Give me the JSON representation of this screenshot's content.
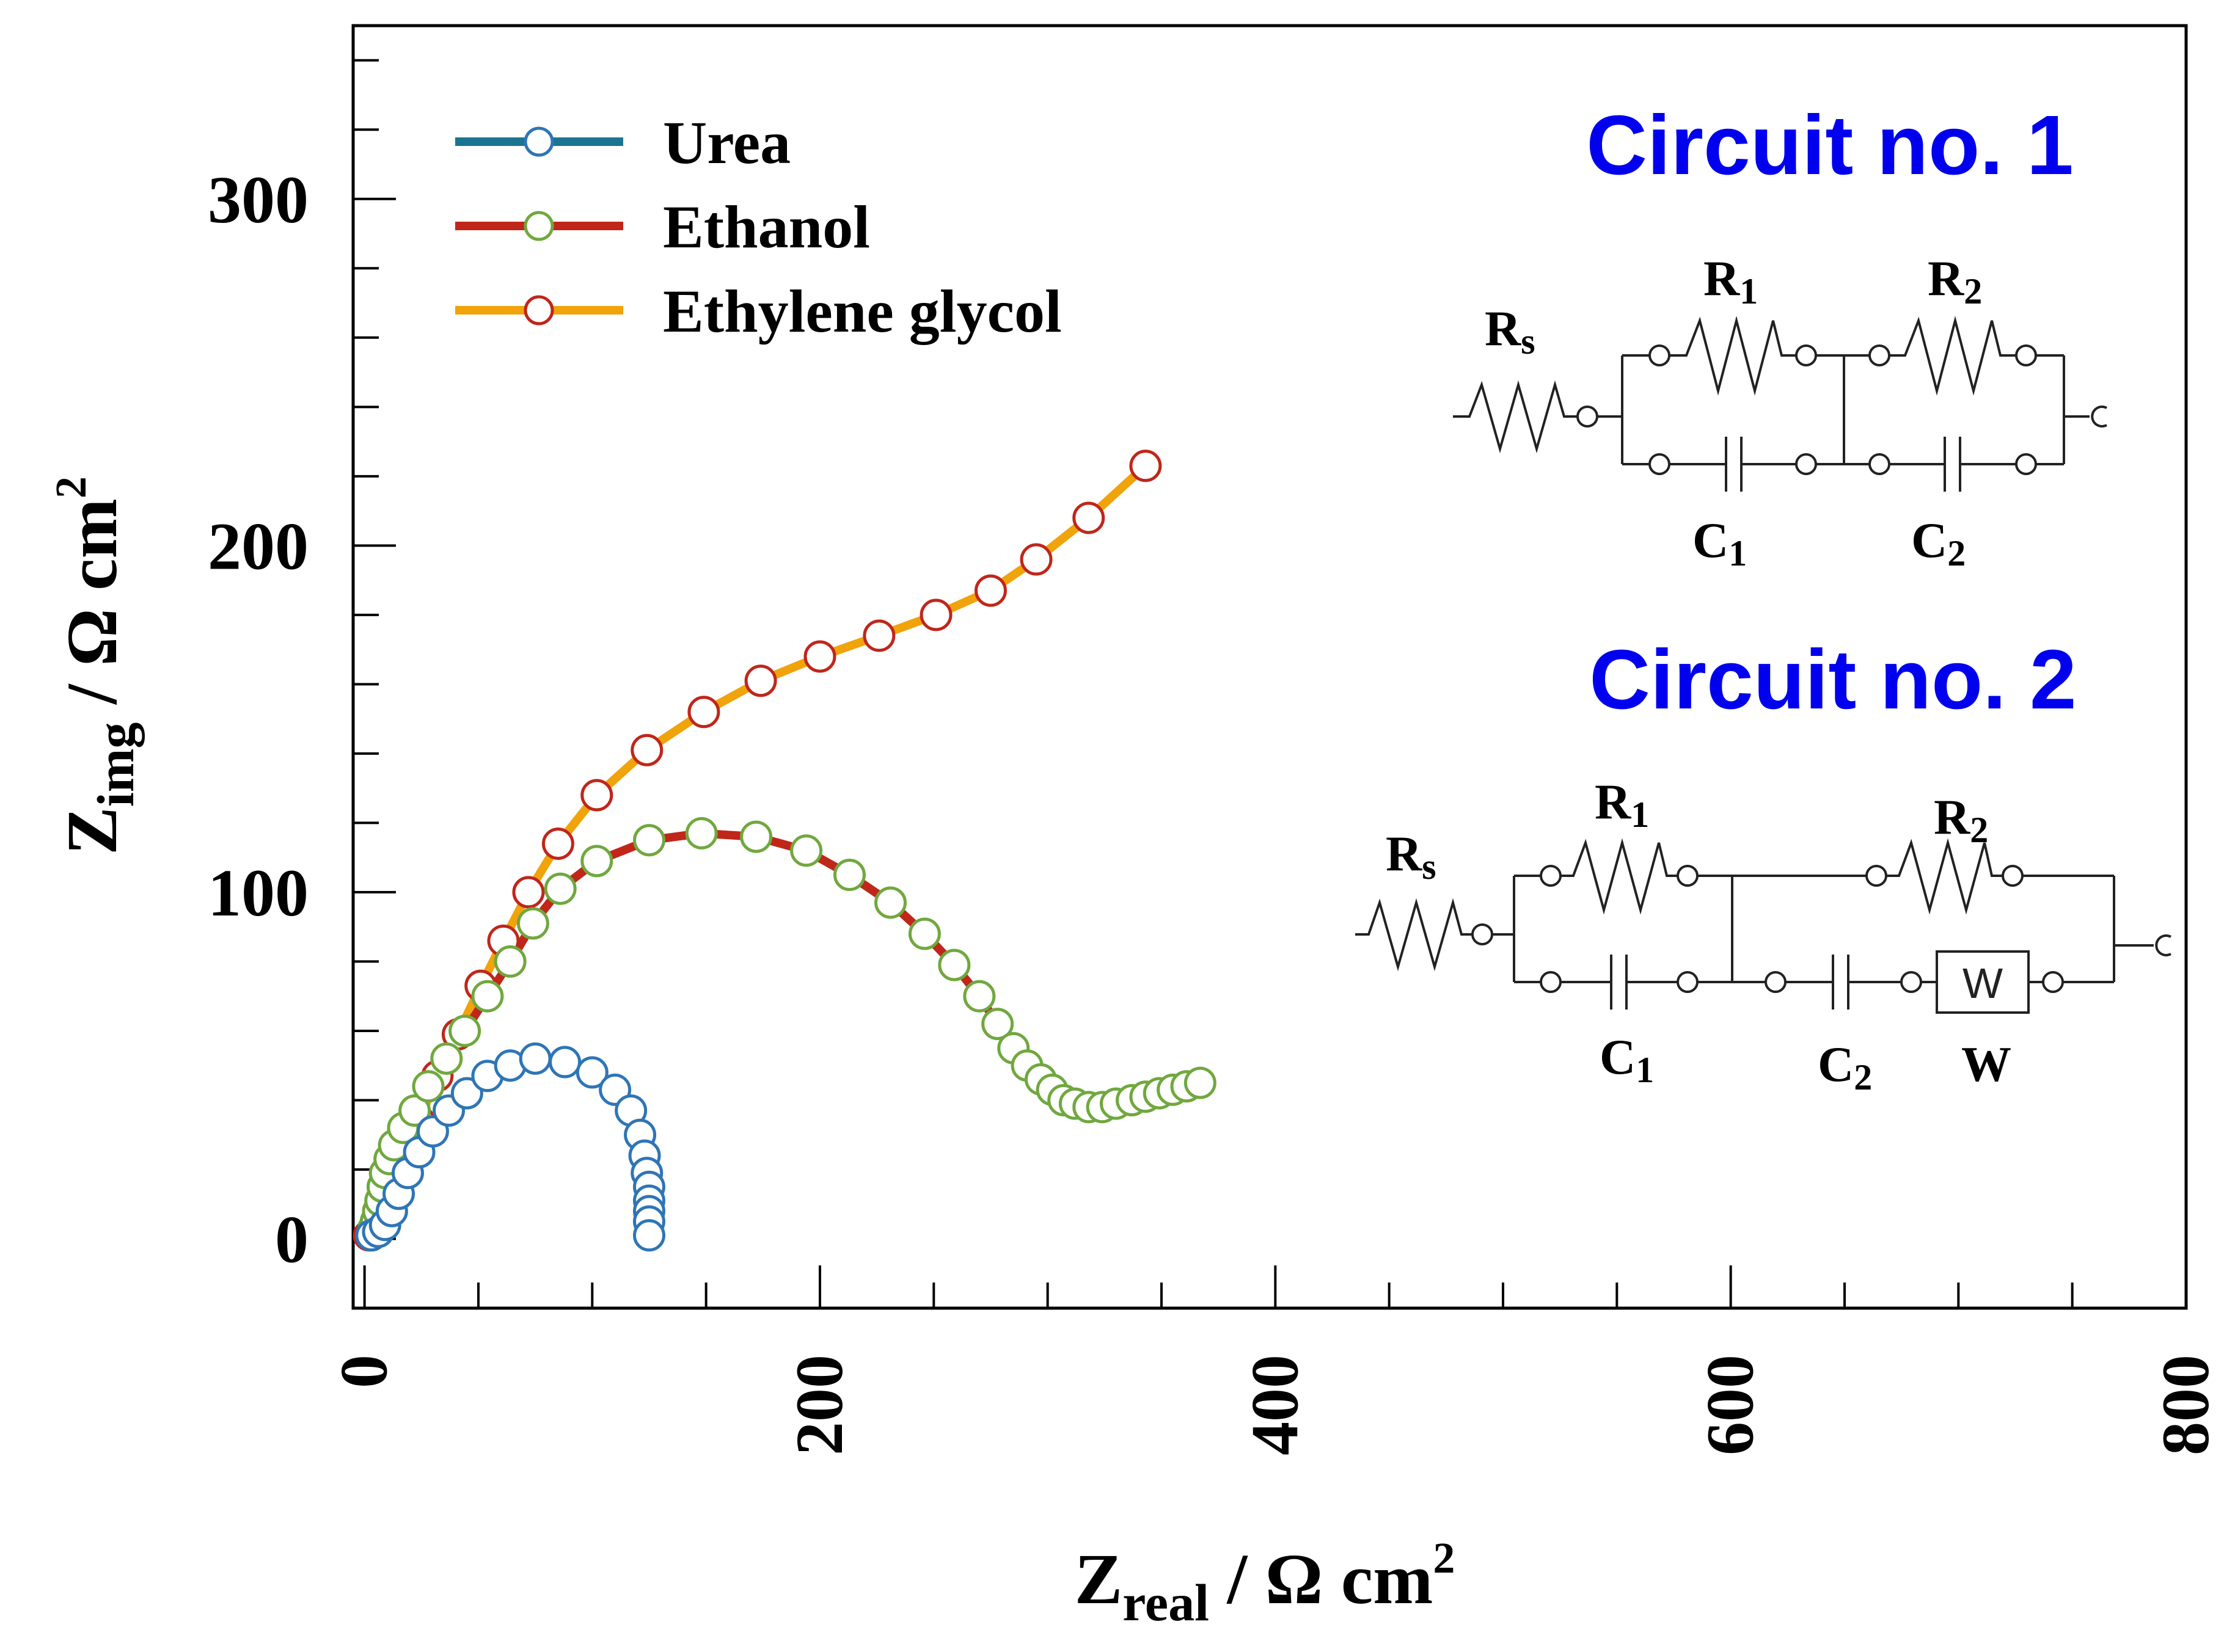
{
  "chart_data": {
    "type": "scatter",
    "title": "",
    "xlabel": {
      "main": "Z",
      "sub": "real",
      "rest": " / Ω cm",
      "sup": "2"
    },
    "ylabel": {
      "main": "Z",
      "sub": "img",
      "rest": " / Ω cm",
      "sup": "2"
    },
    "xlim": [
      -5,
      800
    ],
    "ylim": [
      -20,
      350
    ],
    "xticks": [
      "0",
      "200",
      "400",
      "600",
      "800"
    ],
    "yticks": [
      "0",
      "100",
      "200",
      "300"
    ],
    "series": [
      {
        "name": "Urea",
        "line_color": "#1a7590",
        "marker_color": "#2e75b6",
        "points": [
          [
            3,
            1
          ],
          [
            6,
            2
          ],
          [
            9,
            4
          ],
          [
            12,
            8
          ],
          [
            15,
            13
          ],
          [
            19,
            19
          ],
          [
            24,
            25
          ],
          [
            30,
            31
          ],
          [
            37,
            37
          ],
          [
            45,
            42
          ],
          [
            54,
            47
          ],
          [
            64,
            50
          ],
          [
            75,
            52
          ],
          [
            88,
            51
          ],
          [
            100,
            48
          ],
          [
            110,
            43
          ],
          [
            117,
            37
          ],
          [
            121,
            30
          ],
          [
            123,
            24
          ],
          [
            124,
            19
          ],
          [
            125,
            15
          ],
          [
            125,
            11
          ],
          [
            125,
            8
          ],
          [
            125,
            5
          ],
          [
            125,
            1
          ]
        ]
      },
      {
        "name": "Ethanol",
        "line_color": "#c0261a",
        "marker_color": "#70a83e",
        "points": [
          [
            3,
            1
          ],
          [
            4,
            3
          ],
          [
            5,
            5
          ],
          [
            6,
            8
          ],
          [
            7,
            11
          ],
          [
            8,
            15
          ],
          [
            9,
            19
          ],
          [
            11,
            23
          ],
          [
            13,
            27
          ],
          [
            17,
            32
          ],
          [
            22,
            37
          ],
          [
            28,
            44
          ],
          [
            36,
            52
          ],
          [
            44,
            60
          ],
          [
            54,
            70
          ],
          [
            64,
            80
          ],
          [
            74,
            91
          ],
          [
            86,
            101
          ],
          [
            102,
            109
          ],
          [
            125,
            115
          ],
          [
            148,
            117
          ],
          [
            172,
            116
          ],
          [
            194,
            112
          ],
          [
            213,
            105
          ],
          [
            231,
            97
          ],
          [
            246,
            88
          ],
          [
            259,
            79
          ],
          [
            270,
            70
          ],
          [
            278,
            62
          ],
          [
            285,
            55
          ],
          [
            291,
            50
          ],
          [
            297,
            46
          ],
          [
            302,
            43
          ],
          [
            307,
            40
          ],
          [
            312,
            39
          ],
          [
            318,
            38
          ],
          [
            324,
            38
          ],
          [
            330,
            39
          ],
          [
            337,
            40
          ],
          [
            343,
            41
          ],
          [
            349,
            42
          ],
          [
            355,
            43
          ],
          [
            361,
            44
          ],
          [
            367,
            45
          ]
        ]
      },
      {
        "name": "Ethylene glycol",
        "line_color": "#f0a30a",
        "marker_color": "#c0261a",
        "points": [
          [
            2,
            1
          ],
          [
            5,
            4
          ],
          [
            8,
            8
          ],
          [
            12,
            15
          ],
          [
            17,
            23
          ],
          [
            24,
            34
          ],
          [
            32,
            47
          ],
          [
            41,
            59
          ],
          [
            51,
            73
          ],
          [
            61,
            86
          ],
          [
            72,
            100
          ],
          [
            85,
            114
          ],
          [
            102,
            128
          ],
          [
            124,
            141
          ],
          [
            149,
            152
          ],
          [
            174,
            161
          ],
          [
            200,
            168
          ],
          [
            226,
            174
          ],
          [
            251,
            180
          ],
          [
            275,
            187
          ],
          [
            295,
            196
          ],
          [
            318,
            208
          ],
          [
            343,
            223
          ]
        ]
      }
    ]
  },
  "legend": [
    "Urea",
    "Ethanol",
    "Ethylene glycol"
  ],
  "circuit1": {
    "title": "Circuit no. 1",
    "components": [
      {
        "letter": "R",
        "sub": "s"
      },
      {
        "letter": "R",
        "sub": "1"
      },
      {
        "letter": "R",
        "sub": "2"
      },
      {
        "letter": "C",
        "sub": "1"
      },
      {
        "letter": "C",
        "sub": "2"
      }
    ]
  },
  "circuit2": {
    "title": "Circuit no. 2",
    "components": [
      {
        "letter": "R",
        "sub": "s"
      },
      {
        "letter": "R",
        "sub": "1"
      },
      {
        "letter": "R",
        "sub": "2"
      },
      {
        "letter": "C",
        "sub": "1"
      },
      {
        "letter": "C",
        "sub": "2"
      },
      {
        "letter": "W",
        "sub": ""
      }
    ],
    "warburg_box": "W"
  },
  "colors": {
    "circuit_title": "#0000ee"
  }
}
